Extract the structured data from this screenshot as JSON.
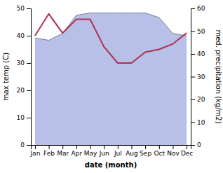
{
  "chart_data": {
    "type": "line",
    "categories": [
      "Jan",
      "Feb",
      "Mar",
      "Apr",
      "May",
      "Jun",
      "Jul",
      "Aug",
      "Sep",
      "Oct",
      "Nov",
      "Dec"
    ],
    "xlabel": "date (month)",
    "ylabel": "max temp (C)",
    "y2label": "med. precipitation (kg/m2)",
    "series": [
      {
        "type": "area",
        "axis": "y2",
        "color": "#b8c0e8",
        "values": [
          47,
          46,
          49,
          57,
          58,
          58,
          58,
          58,
          58,
          56,
          49,
          48
        ]
      },
      {
        "type": "line",
        "color": "#b03050",
        "values": [
          40,
          48,
          41,
          46,
          46,
          36,
          30,
          30,
          34,
          35,
          37,
          41
        ]
      }
    ],
    "ylim": [
      0,
      50
    ],
    "yticks": [
      0,
      10,
      20,
      30,
      40,
      50
    ],
    "y2lim": [
      0,
      60
    ],
    "y2ticks": [
      0,
      10,
      20,
      30,
      40,
      50,
      60
    ],
    "grid": false
  }
}
